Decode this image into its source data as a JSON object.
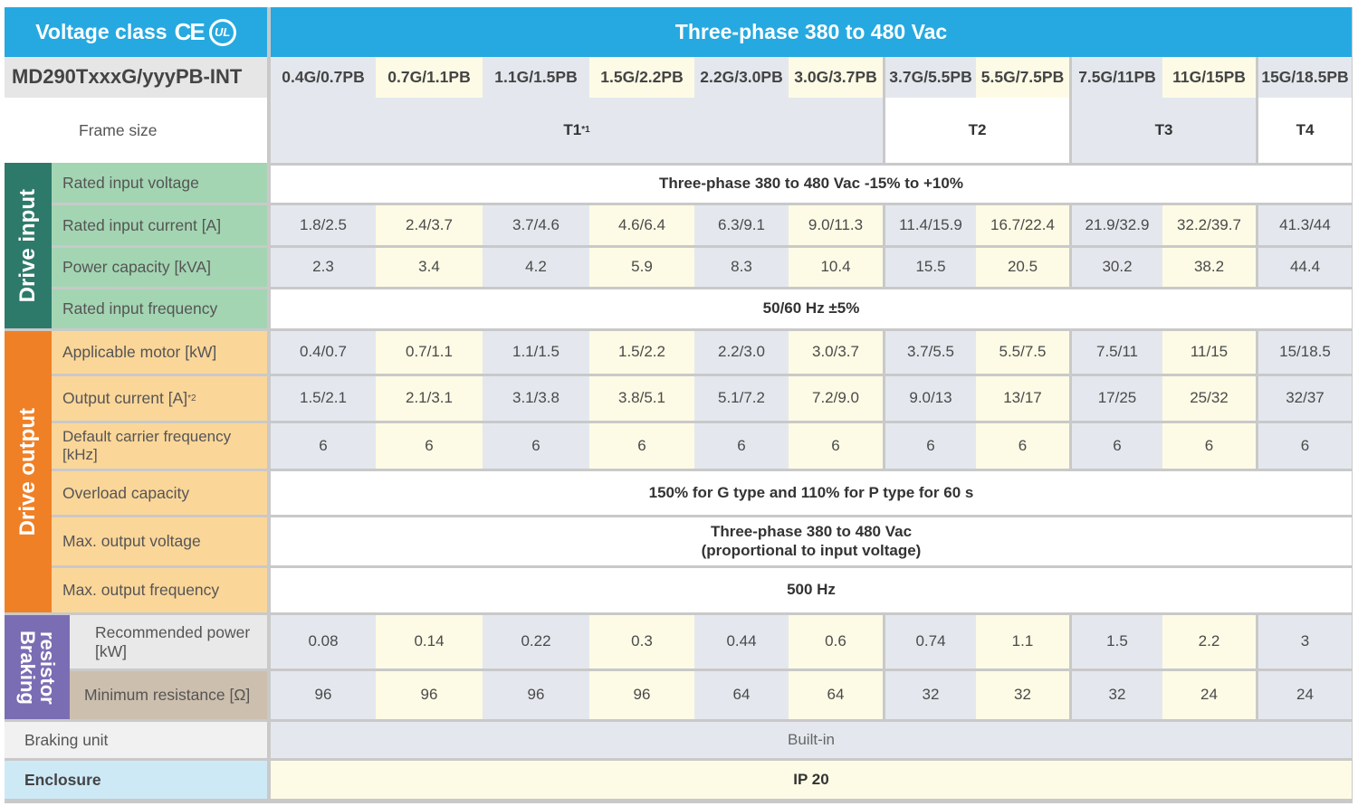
{
  "header": {
    "voltage_class_label": "Voltage class",
    "ce_label": "CE",
    "ul_label": "UL",
    "voltage_range_title": "Three-phase 380 to 480 Vac"
  },
  "model_row": {
    "label": "MD290TxxxG/yyyPB-INT",
    "models": [
      "0.4G/0.7PB",
      "0.7G/1.1PB",
      "1.1G/1.5PB",
      "1.5G/2.2PB",
      "2.2G/3.0PB",
      "3.0G/3.7PB",
      "3.7G/5.5PB",
      "5.5G/7.5PB",
      "7.5G/11PB",
      "11G/15PB",
      "15G/18.5PB"
    ]
  },
  "frame_size": {
    "label": "Frame size",
    "t1": "T1",
    "t1_note": "*1",
    "t2": "T2",
    "t3": "T3",
    "t4": "T4"
  },
  "drive_input": {
    "section_label": "Drive input",
    "rated_input_voltage_label": "Rated input voltage",
    "rated_input_voltage_value": "Three-phase 380 to 480 Vac -15% to +10%",
    "rated_input_current_label": "Rated input current [A]",
    "rated_input_current": [
      "1.8/2.5",
      "2.4/3.7",
      "3.7/4.6",
      "4.6/6.4",
      "6.3/9.1",
      "9.0/11.3",
      "11.4/15.9",
      "16.7/22.4",
      "21.9/32.9",
      "32.2/39.7",
      "41.3/44"
    ],
    "power_capacity_label": "Power capacity [kVA]",
    "power_capacity": [
      "2.3",
      "3.4",
      "4.2",
      "5.9",
      "8.3",
      "10.4",
      "15.5",
      "20.5",
      "30.2",
      "38.2",
      "44.4"
    ],
    "rated_input_frequency_label": "Rated input frequency",
    "rated_input_frequency_value": "50/60 Hz ±5%"
  },
  "drive_output": {
    "section_label": "Drive output",
    "applicable_motor_label": "Applicable motor [kW]",
    "applicable_motor": [
      "0.4/0.7",
      "0.7/1.1",
      "1.1/1.5",
      "1.5/2.2",
      "2.2/3.0",
      "3.0/3.7",
      "3.7/5.5",
      "5.5/7.5",
      "7.5/11",
      "11/15",
      "15/18.5"
    ],
    "output_current_label": "Output current [A]",
    "output_current_note": "*2",
    "output_current": [
      "1.5/2.1",
      "2.1/3.1",
      "3.1/3.8",
      "3.8/5.1",
      "5.1/7.2",
      "7.2/9.0",
      "9.0/13",
      "13/17",
      "17/25",
      "25/32",
      "32/37"
    ],
    "carrier_frequency_label": "Default carrier frequency [kHz]",
    "carrier_frequency": [
      "6",
      "6",
      "6",
      "6",
      "6",
      "6",
      "6",
      "6",
      "6",
      "6",
      "6"
    ],
    "overload_capacity_label": "Overload capacity",
    "overload_capacity_value": "150% for G type and 110% for P type for 60 s",
    "max_output_voltage_label": "Max. output voltage",
    "max_output_voltage_line1": "Three-phase 380 to 480 Vac",
    "max_output_voltage_line2": "(proportional to input voltage)",
    "max_output_frequency_label": "Max. output frequency",
    "max_output_frequency_value": "500 Hz"
  },
  "braking_resistor": {
    "section_label_1": "Braking",
    "section_label_2": "resistor",
    "recommended_power_label": "Recommended power [kW]",
    "recommended_power": [
      "0.08",
      "0.14",
      "0.22",
      "0.3",
      "0.44",
      "0.6",
      "0.74",
      "1.1",
      "1.5",
      "2.2",
      "3"
    ],
    "minimum_resistance_label": "Minimum resistance [Ω]",
    "minimum_resistance": [
      "96",
      "96",
      "96",
      "96",
      "64",
      "64",
      "32",
      "32",
      "32",
      "24",
      "24"
    ]
  },
  "braking_unit": {
    "label": "Braking unit",
    "value": "Built-in"
  },
  "enclosure": {
    "label": "Enclosure",
    "value": "IP 20"
  },
  "colors": {
    "header_blue": "#26a9e0",
    "drive_input_teal": "#2d7a6b",
    "drive_output_orange": "#f08026",
    "braking_purple": "#7b6db3",
    "input_label_green": "#a3d5b2",
    "output_label_orange": "#fbd699",
    "yellow_cell": "#fdfbe5",
    "grey_cell": "#e4e8ee"
  }
}
